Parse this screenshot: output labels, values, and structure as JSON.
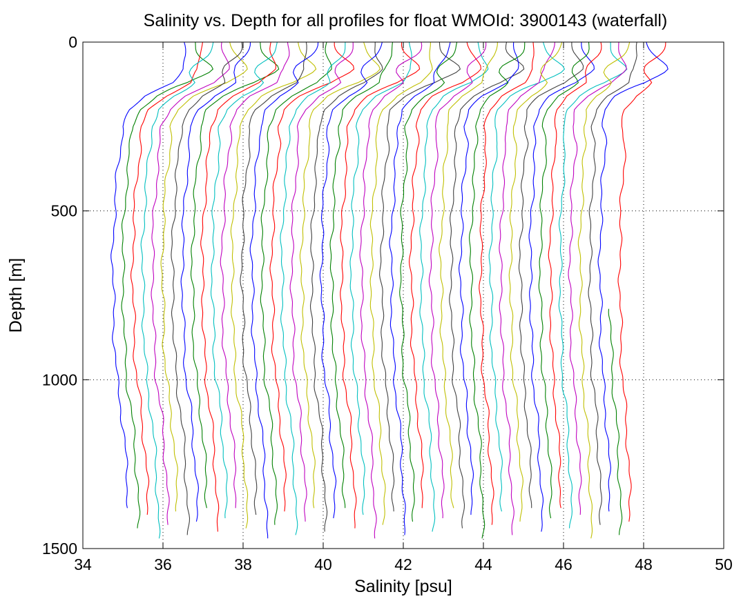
{
  "chart_data": {
    "type": "line",
    "title": "Salinity vs. Depth for all profiles for float WMOId: 3900143 (waterfall)",
    "xlabel": "Salinity [psu]",
    "ylabel": "Depth [m]",
    "xlim": [
      34,
      50
    ],
    "ylim": [
      1500,
      0
    ],
    "y_reversed": true,
    "grid": "dotted",
    "legend": "none",
    "x_ticks": [
      "34",
      "36",
      "38",
      "40",
      "42",
      "44",
      "46",
      "48",
      "50"
    ],
    "y_ticks": [
      "0",
      "500",
      "1000",
      "1500"
    ],
    "waterfall": {
      "profile_count": 52,
      "first_surface_salinity": 36.53,
      "surface_salinity_step": 0.236,
      "color_cycle": [
        "#0000ff",
        "#008000",
        "#ff0000",
        "#00bfbf",
        "#bf00bf",
        "#bfbf00",
        "#404040"
      ]
    },
    "base_profile": {
      "depth": [
        0,
        40,
        80,
        120,
        160,
        200,
        250,
        300,
        400,
        500,
        600,
        700,
        800,
        900,
        1000,
        1100,
        1200,
        1300,
        1400,
        1480
      ],
      "offset": [
        0,
        0,
        -0.05,
        -0.28,
        -0.95,
        -1.35,
        -1.55,
        -1.58,
        -1.68,
        -1.74,
        -1.78,
        -1.78,
        -1.76,
        -1.74,
        -1.68,
        -1.56,
        -1.48,
        -1.42,
        -1.39,
        -1.38
      ]
    }
  }
}
